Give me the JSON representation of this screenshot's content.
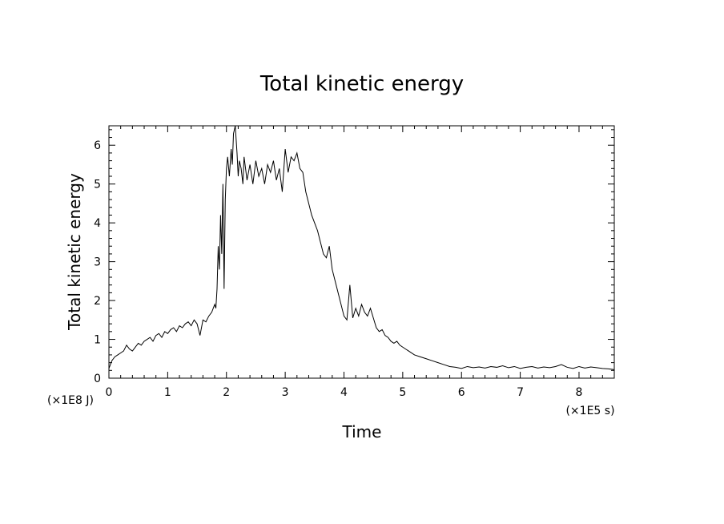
{
  "chart_data": {
    "type": "line",
    "title": "Total kinetic energy",
    "xlabel": "Time",
    "ylabel": "Total kinetic energy",
    "x_unit_label": "(×1E5 s)",
    "y_unit_label": "(×1E8 J)",
    "xlim": [
      0,
      8.6
    ],
    "ylim": [
      0,
      6.5
    ],
    "x_ticks": [
      "0",
      "1",
      "2",
      "3",
      "4",
      "5",
      "6",
      "7",
      "8"
    ],
    "y_ticks": [
      "0",
      "1",
      "2",
      "3",
      "4",
      "5",
      "6"
    ],
    "grid": false,
    "series": [
      {
        "color": "#000000",
        "x": [
          0.0,
          0.05,
          0.1,
          0.15,
          0.2,
          0.25,
          0.3,
          0.35,
          0.4,
          0.45,
          0.5,
          0.55,
          0.6,
          0.65,
          0.7,
          0.75,
          0.8,
          0.85,
          0.9,
          0.95,
          1.0,
          1.05,
          1.1,
          1.15,
          1.2,
          1.25,
          1.3,
          1.35,
          1.4,
          1.45,
          1.5,
          1.55,
          1.6,
          1.65,
          1.7,
          1.75,
          1.8,
          1.82,
          1.84,
          1.86,
          1.88,
          1.9,
          1.92,
          1.94,
          1.96,
          1.98,
          2.0,
          2.02,
          2.05,
          2.08,
          2.1,
          2.12,
          2.15,
          2.18,
          2.2,
          2.22,
          2.25,
          2.28,
          2.3,
          2.35,
          2.4,
          2.45,
          2.5,
          2.55,
          2.6,
          2.65,
          2.7,
          2.75,
          2.8,
          2.85,
          2.9,
          2.95,
          3.0,
          3.05,
          3.1,
          3.15,
          3.2,
          3.25,
          3.3,
          3.35,
          3.4,
          3.45,
          3.5,
          3.55,
          3.6,
          3.65,
          3.7,
          3.75,
          3.8,
          3.85,
          3.9,
          3.95,
          4.0,
          4.05,
          4.1,
          4.15,
          4.2,
          4.25,
          4.3,
          4.35,
          4.4,
          4.45,
          4.5,
          4.55,
          4.6,
          4.65,
          4.7,
          4.75,
          4.8,
          4.85,
          4.9,
          4.95,
          5.0,
          5.1,
          5.2,
          5.3,
          5.4,
          5.5,
          5.6,
          5.7,
          5.8,
          5.9,
          6.0,
          6.1,
          6.2,
          6.3,
          6.4,
          6.5,
          6.6,
          6.7,
          6.8,
          6.9,
          7.0,
          7.1,
          7.2,
          7.3,
          7.4,
          7.5,
          7.6,
          7.7,
          7.8,
          7.9,
          8.0,
          8.1,
          8.2,
          8.3,
          8.4,
          8.5,
          8.6
        ],
        "values": [
          0.25,
          0.45,
          0.55,
          0.6,
          0.65,
          0.7,
          0.85,
          0.75,
          0.7,
          0.8,
          0.9,
          0.85,
          0.95,
          1.0,
          1.05,
          0.95,
          1.1,
          1.15,
          1.05,
          1.2,
          1.15,
          1.25,
          1.3,
          1.2,
          1.35,
          1.3,
          1.4,
          1.45,
          1.35,
          1.5,
          1.4,
          1.1,
          1.5,
          1.45,
          1.6,
          1.7,
          1.9,
          1.8,
          2.3,
          3.4,
          2.8,
          4.2,
          3.2,
          5.0,
          2.3,
          4.6,
          5.4,
          5.7,
          5.2,
          5.9,
          5.5,
          6.3,
          6.5,
          5.8,
          5.2,
          5.6,
          5.4,
          5.0,
          5.7,
          5.1,
          5.5,
          5.0,
          5.6,
          5.2,
          5.4,
          5.0,
          5.5,
          5.3,
          5.6,
          5.1,
          5.4,
          4.8,
          5.9,
          5.3,
          5.7,
          5.6,
          5.8,
          5.4,
          5.3,
          4.8,
          4.5,
          4.2,
          4.0,
          3.8,
          3.5,
          3.2,
          3.1,
          3.4,
          2.8,
          2.5,
          2.2,
          1.9,
          1.6,
          1.5,
          2.4,
          1.55,
          1.8,
          1.6,
          1.9,
          1.7,
          1.6,
          1.8,
          1.55,
          1.3,
          1.2,
          1.25,
          1.1,
          1.05,
          0.95,
          0.9,
          0.95,
          0.85,
          0.8,
          0.7,
          0.6,
          0.55,
          0.5,
          0.45,
          0.4,
          0.35,
          0.3,
          0.28,
          0.25,
          0.3,
          0.27,
          0.29,
          0.26,
          0.3,
          0.28,
          0.32,
          0.27,
          0.3,
          0.25,
          0.28,
          0.3,
          0.26,
          0.29,
          0.27,
          0.3,
          0.35,
          0.28,
          0.25,
          0.3,
          0.26,
          0.29,
          0.27,
          0.25,
          0.24,
          0.22
        ]
      }
    ]
  }
}
